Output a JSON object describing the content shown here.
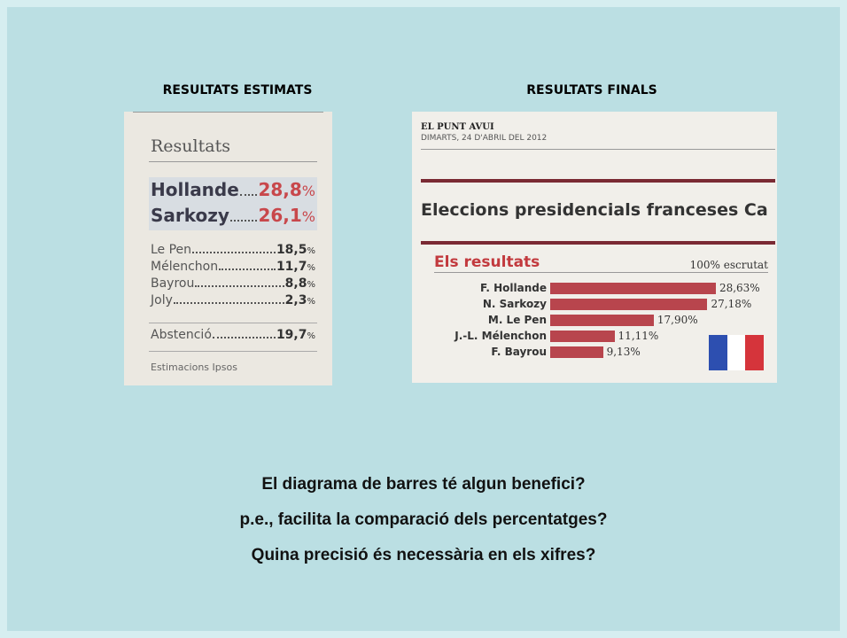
{
  "headings": {
    "left": "RESULTATS ESTIMATS",
    "right": "RESULTATS FINALS"
  },
  "estimates": {
    "title": "Resultats",
    "main": [
      {
        "name": "Hollande",
        "value": "28,8",
        "unit": "%"
      },
      {
        "name": "Sarkozy",
        "value": "26,1",
        "unit": "%"
      }
    ],
    "others": [
      {
        "name": "Le Pen",
        "value": "18,5",
        "unit": "%"
      },
      {
        "name": "Mélenchon",
        "value": "11,7",
        "unit": "%"
      },
      {
        "name": "Bayrou",
        "value": "8,8",
        "unit": "%"
      },
      {
        "name": "Joly",
        "value": "2,3",
        "unit": "%"
      }
    ],
    "abstention": {
      "name": "Abstenció",
      "value": "19,7",
      "unit": "%"
    },
    "source": "Estimacions Ipsos"
  },
  "final": {
    "paper": "EL PUNT AVUI",
    "date": "DIMARTS, 24 D'ABRIL DEL 2012",
    "headline": "Eleccions presidencials franceses Ca",
    "section": "Els resultats",
    "count": "100% escrutat",
    "results": [
      {
        "name": "F. Hollande",
        "value": 28.63,
        "label": "28,63%"
      },
      {
        "name": "N. Sarkozy",
        "value": 27.18,
        "label": "27,18%"
      },
      {
        "name": "M. Le Pen",
        "value": 17.9,
        "label": "17,90%"
      },
      {
        "name": "J.-L. Mélenchon",
        "value": 11.11,
        "label": "11,11%"
      },
      {
        "name": "F. Bayrou",
        "value": 9.13,
        "label": "9,13%"
      }
    ]
  },
  "questions": [
    "El diagrama de barres té algun benefici?",
    "p.e., facilita la comparació dels percentatges?",
    "Quina precisió és necessària en els xifres?"
  ]
}
